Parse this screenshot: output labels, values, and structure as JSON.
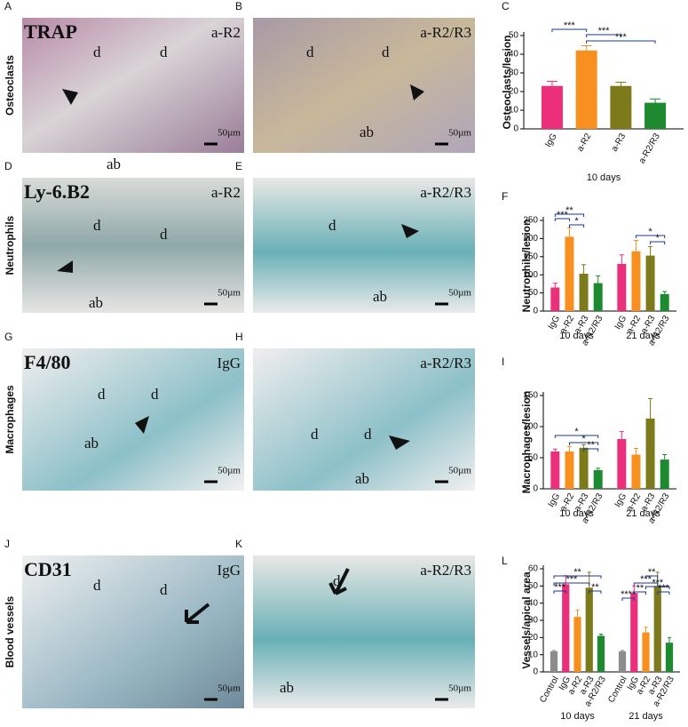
{
  "rows": [
    "Osteoclasts",
    "Neutrophils",
    "Macrophages",
    "Blood vessels"
  ],
  "panels": [
    {
      "letter": "A",
      "stain": "TRAP",
      "label": "a-R2",
      "marks": [
        "d",
        "d",
        "ab"
      ],
      "scale": "50µm"
    },
    {
      "letter": "B",
      "label": "a-R2/R3",
      "marks": [
        "d",
        "d",
        "ab"
      ],
      "scale": "50µm"
    },
    {
      "letter": "D",
      "stain": "Ly-6.B2",
      "label": "a-R2",
      "marks": [
        "d",
        "d",
        "ab"
      ],
      "scale": "50µm"
    },
    {
      "letter": "E",
      "label": "a-R2/R3",
      "marks": [
        "d",
        "ab"
      ],
      "scale": "50µm"
    },
    {
      "letter": "G",
      "stain": "F4/80",
      "label": "IgG",
      "marks": [
        "d",
        "d",
        "ab"
      ],
      "scale": "50µm"
    },
    {
      "letter": "H",
      "label": "a-R2/R3",
      "marks": [
        "d",
        "d",
        "ab"
      ],
      "scale": "50µm"
    },
    {
      "letter": "J",
      "stain": "CD31",
      "label": "IgG",
      "marks": [
        "d",
        "d"
      ],
      "scale": "50µm"
    },
    {
      "letter": "K",
      "label": "a-R2/R3",
      "marks": [
        "d",
        "ab"
      ],
      "scale": "50µm"
    }
  ],
  "chart_data": [
    {
      "type": "bar",
      "letter": "C",
      "ylabel": "Osteoclasts/lesion",
      "categories": [
        "10 days"
      ],
      "ylim": [
        0,
        50
      ],
      "yticks": [
        0,
        10,
        20,
        30,
        40,
        50
      ],
      "series": [
        {
          "name": "IgG",
          "color": "#ec2f7b",
          "values": [
            23
          ],
          "errors": [
            2.5
          ]
        },
        {
          "name": "a-R2",
          "color": "#f7901e",
          "values": [
            42
          ],
          "errors": [
            2.5
          ]
        },
        {
          "name": "a-R3",
          "color": "#7d7a1c",
          "values": [
            23
          ],
          "errors": [
            2
          ]
        },
        {
          "name": "a-R2/R3",
          "color": "#1d8a2f",
          "values": [
            14
          ],
          "errors": [
            2
          ]
        }
      ],
      "annotations": [
        "***",
        "***",
        "***"
      ]
    },
    {
      "type": "bar",
      "letter": "F",
      "ylabel": "Neutrophils/lesion",
      "categories": [
        "10 days",
        "21 days"
      ],
      "ylim": [
        0,
        250
      ],
      "yticks": [
        0,
        50,
        100,
        150,
        200,
        250
      ],
      "series": [
        {
          "name": "IgG",
          "color": "#ec2f7b",
          "values": [
            65,
            130
          ],
          "errors": [
            12,
            25
          ]
        },
        {
          "name": "a-R2",
          "color": "#f7901e",
          "values": [
            205,
            165
          ],
          "errors": [
            25,
            30
          ]
        },
        {
          "name": "a-R3",
          "color": "#7d7a1c",
          "values": [
            103,
            153
          ],
          "errors": [
            25,
            25
          ]
        },
        {
          "name": "a-R2/R3",
          "color": "#1d8a2f",
          "values": [
            77,
            47
          ],
          "errors": [
            20,
            7
          ]
        }
      ],
      "annotations": [
        "***",
        "**",
        "*",
        "*",
        "*"
      ]
    },
    {
      "type": "bar",
      "letter": "I",
      "ylabel": "Macrophages/lesion",
      "categories": [
        "10 days",
        "21 days"
      ],
      "ylim": [
        0,
        150
      ],
      "yticks": [
        0,
        50,
        100,
        150
      ],
      "series": [
        {
          "name": "IgG",
          "color": "#ec2f7b",
          "values": [
            60,
            80
          ],
          "errors": [
            4,
            12
          ]
        },
        {
          "name": "a-R2",
          "color": "#f7901e",
          "values": [
            60,
            55
          ],
          "errors": [
            8,
            10
          ]
        },
        {
          "name": "a-R3",
          "color": "#7d7a1c",
          "values": [
            66,
            113
          ],
          "errors": [
            5,
            32
          ]
        },
        {
          "name": "a-R2/R3",
          "color": "#1d8a2f",
          "values": [
            30,
            47
          ],
          "errors": [
            3,
            8
          ]
        }
      ],
      "annotations": [
        "*",
        "*",
        "**"
      ]
    },
    {
      "type": "bar",
      "letter": "L",
      "ylabel": "Vessels/apical area",
      "categories": [
        "10 days",
        "21 days"
      ],
      "ylim": [
        0,
        60
      ],
      "yticks": [
        0,
        10,
        20,
        30,
        40,
        50,
        60
      ],
      "series": [
        {
          "name": "Control",
          "color": "#8c8c8c",
          "values": [
            12,
            12
          ],
          "errors": [
            0.5,
            0.5
          ]
        },
        {
          "name": "IgG",
          "color": "#ec2f7b",
          "values": [
            51,
            46
          ],
          "errors": [
            5,
            4
          ]
        },
        {
          "name": "a-R2",
          "color": "#f7901e",
          "values": [
            32,
            23
          ],
          "errors": [
            4,
            3
          ]
        },
        {
          "name": "a-R3",
          "color": "#7d7a1c",
          "values": [
            49,
            50
          ],
          "errors": [
            9,
            8
          ]
        },
        {
          "name": "a-R2/R3",
          "color": "#1d8a2f",
          "values": [
            21,
            17
          ],
          "errors": [
            1,
            3
          ]
        }
      ],
      "annotations": [
        "***",
        "***",
        "**",
        "**",
        "****",
        "**",
        "***",
        "**",
        "***",
        "***"
      ]
    }
  ]
}
